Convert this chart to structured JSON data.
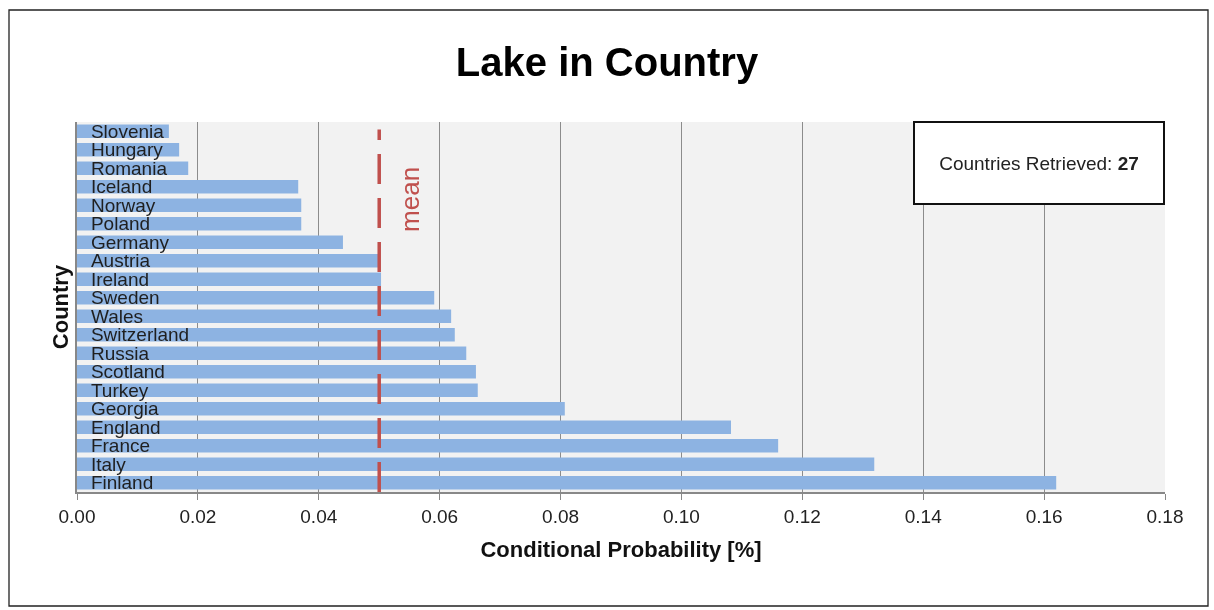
{
  "chart_data": {
    "type": "bar",
    "orientation": "horizontal",
    "title": "Lake in Country",
    "xlabel": "Conditional Probability [%]",
    "ylabel": "Country",
    "categories": [
      "Slovenia",
      "Hungary",
      "Romania",
      "Iceland",
      "Norway",
      "Poland",
      "Germany",
      "Austria",
      "Ireland",
      "Sweden",
      "Wales",
      "Switzerland",
      "Russia",
      "Scotland",
      "Turkey",
      "Georgia",
      "England",
      "France",
      "Italy",
      "Finland"
    ],
    "values": [
      0.0152,
      0.0169,
      0.0184,
      0.0366,
      0.0371,
      0.0371,
      0.044,
      0.05,
      0.0503,
      0.0591,
      0.0619,
      0.0625,
      0.0644,
      0.066,
      0.0663,
      0.0807,
      0.1082,
      0.116,
      0.1319,
      0.162
    ],
    "color": "#8db3e2",
    "xlim": [
      0,
      0.18
    ],
    "xticks": [
      {
        "value": 0,
        "label": "0.00"
      },
      {
        "value": 0.02,
        "label": "0.02"
      },
      {
        "value": 0.04,
        "label": "0.04"
      },
      {
        "value": 0.06,
        "label": "0.06"
      },
      {
        "value": 0.08,
        "label": "0.08"
      },
      {
        "value": 0.1,
        "label": "0.10"
      },
      {
        "value": 0.12,
        "label": "0.12"
      },
      {
        "value": 0.14,
        "label": "0.14"
      },
      {
        "value": 0.16,
        "label": "0.16"
      },
      {
        "value": 0.18,
        "label": "0.18"
      }
    ],
    "grid": "x",
    "ref_lines": [
      {
        "axis": "x",
        "value": 0.05,
        "label": "mean",
        "color": "#c0504d",
        "line_style": "dashed"
      }
    ],
    "annotations": [
      "Countries Retrieved: 27"
    ]
  }
}
